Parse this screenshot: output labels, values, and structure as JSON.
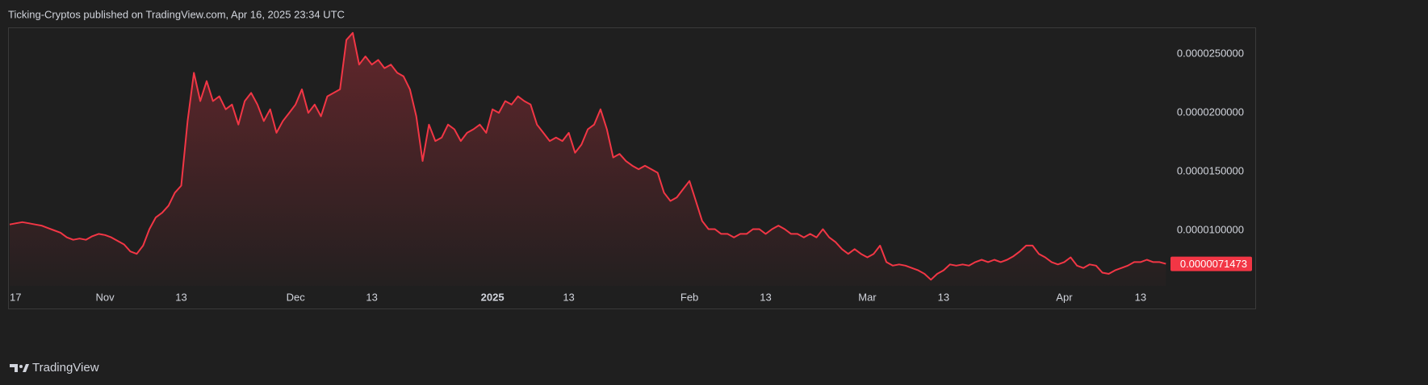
{
  "header": {
    "title": "Ticking-Cryptos published on TradingView.com, Apr 16, 2025 23:34 UTC"
  },
  "footer": {
    "brand": "TradingView"
  },
  "chart_data": {
    "type": "area",
    "categories": [
      "17",
      null,
      null,
      null,
      null,
      null,
      null,
      null,
      null,
      null,
      null,
      null,
      null,
      null,
      null,
      "Nov",
      null,
      null,
      null,
      null,
      null,
      null,
      null,
      null,
      null,
      null,
      null,
      "13",
      null,
      null,
      null,
      null,
      null,
      null,
      null,
      null,
      null,
      null,
      null,
      null,
      null,
      null,
      null,
      null,
      null,
      "Dec",
      null,
      null,
      null,
      null,
      null,
      null,
      null,
      null,
      null,
      null,
      null,
      "13",
      null,
      null,
      null,
      null,
      null,
      null,
      null,
      null,
      null,
      null,
      null,
      null,
      null,
      null,
      null,
      null,
      null,
      null,
      "2025",
      null,
      null,
      null,
      null,
      null,
      null,
      null,
      null,
      null,
      null,
      null,
      "13",
      null,
      null,
      null,
      null,
      null,
      null,
      null,
      null,
      null,
      null,
      null,
      null,
      null,
      null,
      null,
      null,
      null,
      null,
      "Feb",
      null,
      null,
      null,
      null,
      null,
      null,
      null,
      null,
      null,
      null,
      null,
      "13",
      null,
      null,
      null,
      null,
      null,
      null,
      null,
      null,
      null,
      null,
      null,
      null,
      null,
      null,
      null,
      "Mar",
      null,
      null,
      null,
      null,
      null,
      null,
      null,
      null,
      null,
      null,
      null,
      "13",
      null,
      null,
      null,
      null,
      null,
      null,
      null,
      null,
      null,
      null,
      null,
      null,
      null,
      null,
      null,
      null,
      null,
      null,
      "Apr",
      null,
      null,
      null,
      null,
      null,
      null,
      null,
      null,
      null,
      null,
      null,
      "13",
      null,
      null,
      null,
      null
    ],
    "series": [
      {
        "color": "#f23645",
        "values": [
          1.05e-05,
          1.06e-05,
          1.07e-05,
          1.06e-05,
          1.05e-05,
          1.04e-05,
          1.02e-05,
          1e-05,
          9.8e-06,
          9.4e-06,
          9.2e-06,
          9.3e-06,
          9.2e-06,
          9.5e-06,
          9.7e-06,
          9.6e-06,
          9.4e-06,
          9.1e-06,
          8.8e-06,
          8.2e-06,
          8e-06,
          8.7e-06,
          1.01e-05,
          1.11e-05,
          1.15e-05,
          1.21e-05,
          1.32e-05,
          1.38e-05,
          1.93e-05,
          2.34e-05,
          2.1e-05,
          2.27e-05,
          2.1e-05,
          2.14e-05,
          2.03e-05,
          2.07e-05,
          1.9e-05,
          2.1e-05,
          2.17e-05,
          2.07e-05,
          1.93e-05,
          2.03e-05,
          1.83e-05,
          1.93e-05,
          2e-05,
          2.07e-05,
          2.2e-05,
          2e-05,
          2.07e-05,
          1.97e-05,
          2.14e-05,
          2.17e-05,
          2.2e-05,
          2.62e-05,
          2.68e-05,
          2.41e-05,
          2.48e-05,
          2.41e-05,
          2.45e-05,
          2.38e-05,
          2.41e-05,
          2.34e-05,
          2.31e-05,
          2.2e-05,
          1.97e-05,
          1.59e-05,
          1.9e-05,
          1.76e-05,
          1.79e-05,
          1.9e-05,
          1.86e-05,
          1.76e-05,
          1.83e-05,
          1.86e-05,
          1.9e-05,
          1.83e-05,
          2.03e-05,
          2e-05,
          2.1e-05,
          2.07e-05,
          2.14e-05,
          2.1e-05,
          2.07e-05,
          1.9e-05,
          1.83e-05,
          1.76e-05,
          1.79e-05,
          1.76e-05,
          1.83e-05,
          1.66e-05,
          1.73e-05,
          1.86e-05,
          1.9e-05,
          2.03e-05,
          1.86e-05,
          1.62e-05,
          1.65e-05,
          1.59e-05,
          1.55e-05,
          1.52e-05,
          1.55e-05,
          1.52e-05,
          1.49e-05,
          1.32e-05,
          1.25e-05,
          1.28e-05,
          1.35e-05,
          1.42e-05,
          1.25e-05,
          1.08e-05,
          1.01e-05,
          1.01e-05,
          9.7e-06,
          9.7e-06,
          9.4e-06,
          9.7e-06,
          9.7e-06,
          1.01e-05,
          1.01e-05,
          9.7e-06,
          1.01e-05,
          1.04e-05,
          1.01e-05,
          9.7e-06,
          9.7e-06,
          9.4e-06,
          9.7e-06,
          9.4e-06,
          1.01e-05,
          9.4e-06,
          9e-06,
          8.4e-06,
          8e-06,
          8.4e-06,
          8e-06,
          7.7e-06,
          8e-06,
          8.7e-06,
          7.3e-06,
          7e-06,
          7.1e-06,
          7e-06,
          6.8e-06,
          6.6e-06,
          6.3e-06,
          5.8e-06,
          6.3e-06,
          6.6e-06,
          7.1e-06,
          7e-06,
          7.1e-06,
          7e-06,
          7.3e-06,
          7.5e-06,
          7.3e-06,
          7.5e-06,
          7.3e-06,
          7.5e-06,
          7.8e-06,
          8.2e-06,
          8.7e-06,
          8.7e-06,
          8e-06,
          7.7e-06,
          7.3e-06,
          7.1e-06,
          7.3e-06,
          7.7e-06,
          7e-06,
          6.8e-06,
          7.1e-06,
          7e-06,
          6.4e-06,
          6.3e-06,
          6.6e-06,
          6.8e-06,
          7e-06,
          7.3e-06,
          7.3e-06,
          7.5e-06,
          7.3e-06,
          7.3e-06,
          7.1473e-06
        ]
      }
    ],
    "last_value_label": "0.0000071473",
    "ylim": [
      5.27e-06,
      2.72e-05
    ],
    "yticks": [
      {
        "value": 1e-05,
        "label": "0.0000100000"
      },
      {
        "value": 1.5e-05,
        "label": "0.0000150000"
      },
      {
        "value": 2e-05,
        "label": "0.0000200000"
      },
      {
        "value": 2.5e-05,
        "label": "0.0000250000"
      }
    ],
    "grid": false
  }
}
